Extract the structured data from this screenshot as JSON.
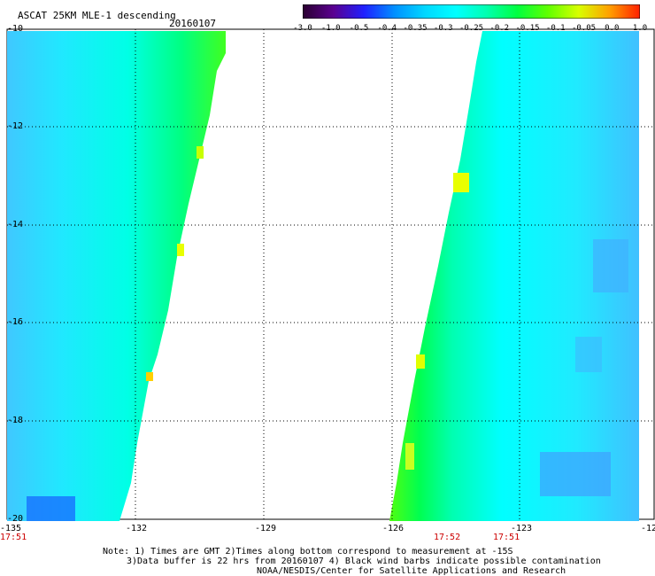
{
  "header": {
    "title": "ASCAT 25KM MLE-1 descending",
    "date": "20160107"
  },
  "colorbar": {
    "labels": [
      "-3.0",
      "-1.0",
      "-0.5",
      "-0.4",
      "-0.35",
      "-0.3",
      "-0.25",
      "-0.2",
      "-0.15",
      "-0.1",
      "-0.05",
      "0.0",
      "1.0"
    ],
    "colors": [
      "#2a0030",
      "#5a0090",
      "#2020ff",
      "#0090ff",
      "#00d8ff",
      "#00ffff",
      "#00ffb0",
      "#00ff40",
      "#60ff00",
      "#d8ff00",
      "#ffa000",
      "#ff2000"
    ]
  },
  "map": {
    "lat_labels": [
      "-10",
      "-12",
      "-14",
      "-16",
      "-18",
      "-20"
    ],
    "lon_labels": [
      "-135",
      "-132",
      "-129",
      "-126",
      "-123",
      "-12"
    ],
    "times": [
      {
        "label": "17:51",
        "lon": "-135"
      },
      {
        "label": "17:52",
        "lon": "-124.5"
      },
      {
        "label": "17:51",
        "lon": "-123"
      }
    ],
    "swaths": [
      {
        "name": "west swath",
        "lon_min": -135,
        "lat_top": -10,
        "lat_bottom": -20
      },
      {
        "name": "east swath",
        "lon_max": -121,
        "lat_top": -10,
        "lat_bottom": -20
      }
    ]
  },
  "footer": {
    "line1": "Note: 1) Times are GMT 2)Times along bottom correspond to measurement at -15S",
    "line2": "3)Data buffer is 22 hrs from 20160107 4) Black wind barbs indicate possible contamination",
    "line3": "NOAA/NESDIS/Center for Satellite Applications and Research"
  }
}
